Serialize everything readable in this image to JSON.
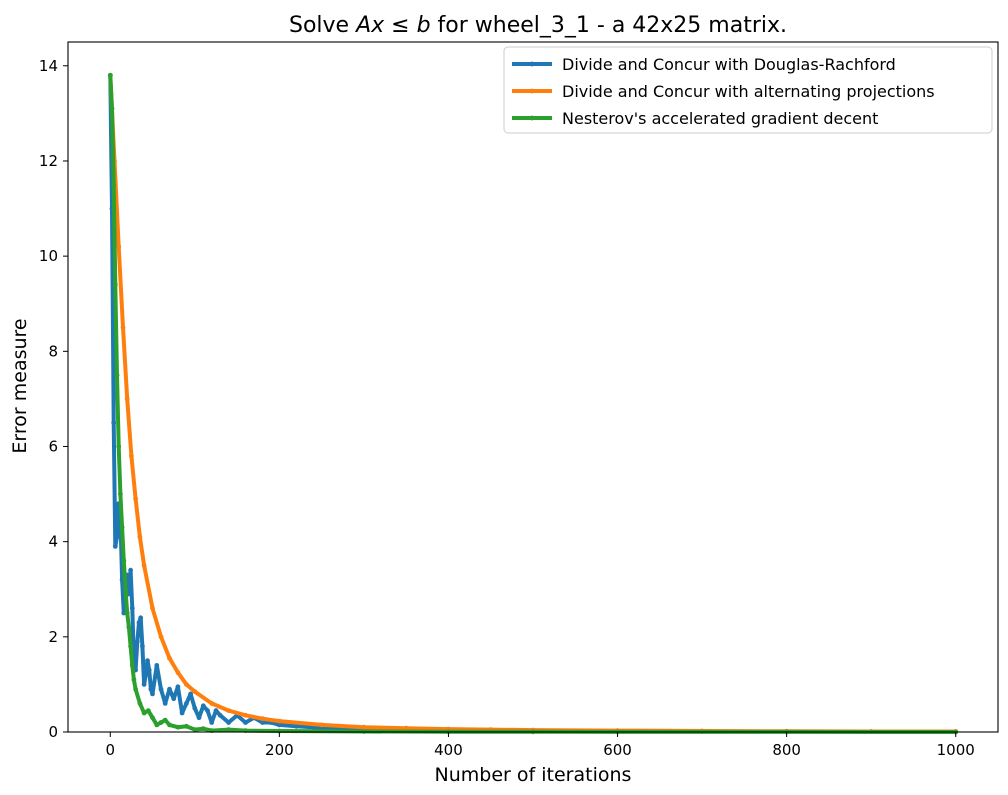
{
  "chart_data": {
    "type": "line",
    "title": "Solve Ax ≤ b for wheel_3_1 - a 42x25 matrix.",
    "xlabel": "Number of iterations",
    "ylabel": "Error measure",
    "xlim": [
      -50,
      1050
    ],
    "ylim": [
      0,
      14.5
    ],
    "xticks": [
      0,
      200,
      400,
      600,
      800,
      1000
    ],
    "yticks": [
      0,
      2,
      4,
      6,
      8,
      10,
      12,
      14
    ],
    "grid": false,
    "legend_position": "top-right",
    "series": [
      {
        "name": "Divide and Concur with Douglas-Rachford",
        "color": "#1f77b4",
        "x": [
          0,
          2,
          4,
          6,
          8,
          10,
          12,
          14,
          16,
          18,
          20,
          22,
          24,
          26,
          28,
          30,
          32,
          34,
          36,
          38,
          40,
          42,
          44,
          46,
          48,
          50,
          55,
          60,
          65,
          70,
          75,
          80,
          85,
          90,
          95,
          100,
          105,
          110,
          115,
          120,
          125,
          130,
          140,
          150,
          160,
          170,
          180,
          190,
          200,
          220,
          240,
          260,
          280,
          300,
          350,
          400,
          450,
          500,
          600,
          700,
          800,
          900,
          1000
        ],
        "y": [
          13.8,
          11.0,
          6.5,
          3.9,
          4.1,
          4.8,
          4.5,
          3.2,
          2.5,
          3.1,
          3.3,
          2.9,
          3.4,
          2.6,
          1.5,
          1.3,
          1.9,
          2.3,
          2.4,
          1.8,
          1.0,
          1.2,
          1.5,
          1.3,
          0.9,
          0.8,
          1.4,
          0.9,
          0.6,
          0.9,
          0.7,
          0.95,
          0.4,
          0.6,
          0.8,
          0.5,
          0.3,
          0.55,
          0.45,
          0.2,
          0.45,
          0.35,
          0.2,
          0.35,
          0.2,
          0.3,
          0.2,
          0.2,
          0.15,
          0.12,
          0.1,
          0.08,
          0.07,
          0.06,
          0.04,
          0.03,
          0.02,
          0.02,
          0.015,
          0.01,
          0.01,
          0.008,
          0.005
        ]
      },
      {
        "name": "Divide and Concur with alternating projections",
        "color": "#ff7f0e",
        "x": [
          0,
          5,
          10,
          15,
          20,
          25,
          30,
          35,
          40,
          50,
          60,
          70,
          80,
          90,
          100,
          120,
          140,
          160,
          180,
          200,
          250,
          300,
          350,
          400,
          450,
          500,
          600,
          700,
          800,
          900,
          1000
        ],
        "y": [
          13.8,
          12.0,
          10.2,
          8.5,
          7.0,
          5.8,
          4.9,
          4.1,
          3.5,
          2.6,
          2.0,
          1.55,
          1.25,
          1.0,
          0.85,
          0.6,
          0.45,
          0.35,
          0.28,
          0.23,
          0.15,
          0.1,
          0.08,
          0.06,
          0.05,
          0.04,
          0.03,
          0.02,
          0.015,
          0.01,
          0.01
        ]
      },
      {
        "name": "Nesterov's accelerated gradient decent",
        "color": "#2ca02c",
        "x": [
          0,
          2,
          4,
          6,
          8,
          10,
          12,
          14,
          16,
          18,
          20,
          22,
          24,
          26,
          28,
          30,
          35,
          40,
          45,
          50,
          55,
          60,
          65,
          70,
          80,
          90,
          100,
          110,
          120,
          140,
          160,
          200,
          300,
          400,
          500,
          600,
          800,
          1000
        ],
        "y": [
          13.8,
          13.1,
          11.5,
          9.4,
          7.5,
          6.0,
          5.0,
          4.3,
          3.6,
          3.0,
          2.5,
          2.2,
          1.8,
          1.4,
          1.1,
          0.9,
          0.6,
          0.4,
          0.45,
          0.3,
          0.15,
          0.2,
          0.25,
          0.15,
          0.1,
          0.12,
          0.05,
          0.07,
          0.03,
          0.05,
          0.03,
          0.02,
          0.01,
          0.005,
          0.005,
          0.003,
          0.002,
          0.001
        ]
      }
    ]
  }
}
